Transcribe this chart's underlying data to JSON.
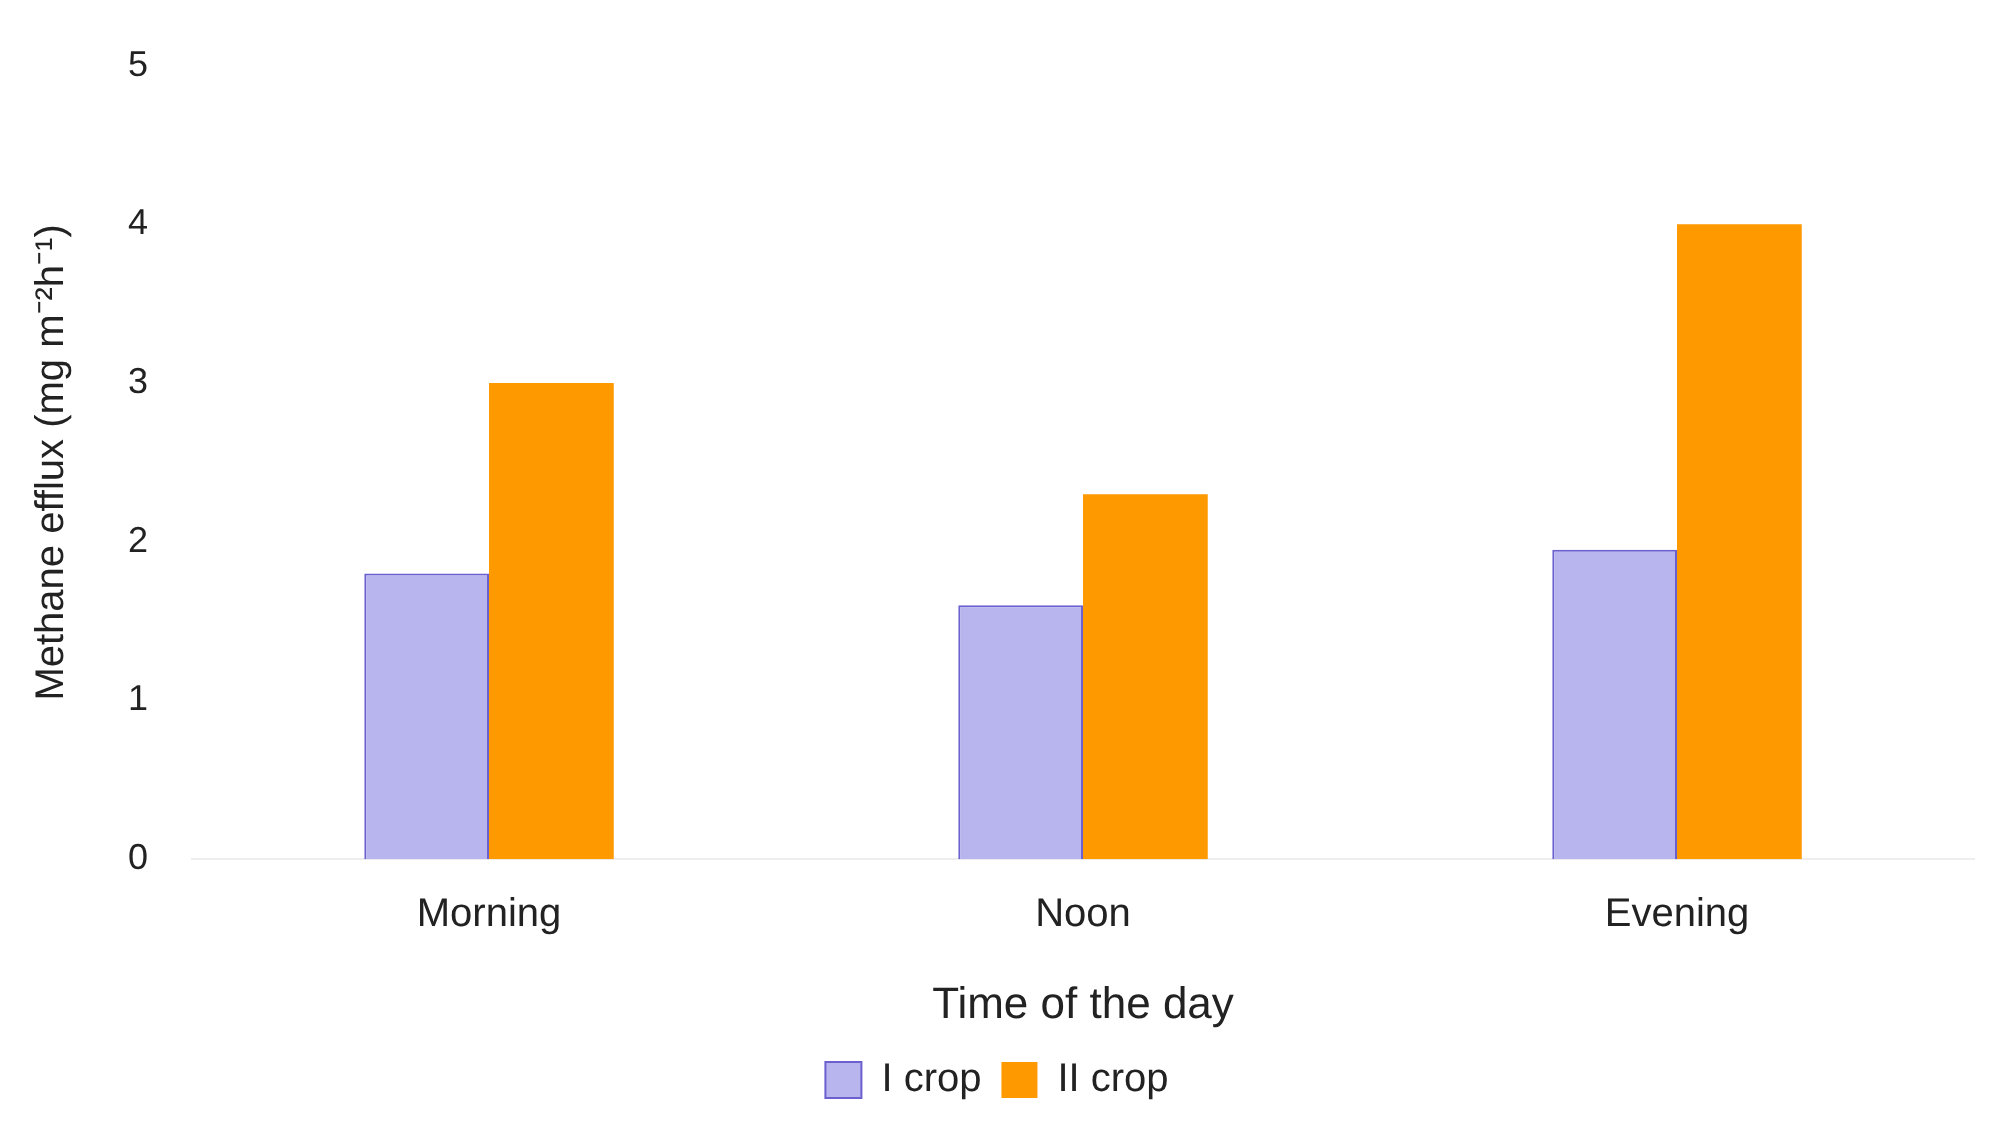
{
  "chart_data": {
    "type": "bar",
    "xlabel": "Time of the day",
    "ylabel": "Methane efflux (mg m⁻²h⁻¹)",
    "categories": [
      "Morning",
      "Noon",
      "Evening"
    ],
    "series": [
      {
        "name": "I crop",
        "color": "#b8b4ee",
        "values": [
          1.8,
          1.6,
          1.95
        ]
      },
      {
        "name": "II crop",
        "color": "#ff9900",
        "values": [
          3.0,
          2.3,
          4.0
        ]
      }
    ],
    "ylim": [
      0,
      5
    ],
    "yticks": [
      0,
      1,
      2,
      3,
      4,
      5
    ],
    "grid": false,
    "legend": "bottom"
  }
}
